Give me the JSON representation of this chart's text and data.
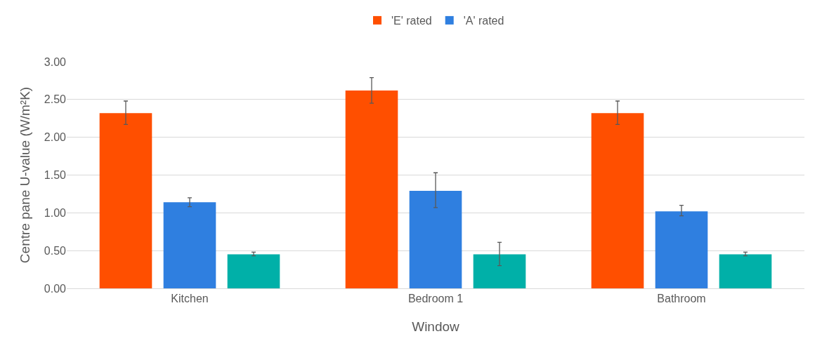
{
  "chart_data": {
    "type": "bar",
    "xlabel": "Window",
    "ylabel": "Centre pane U-value (W/m²K)",
    "categories": [
      "Kitchen",
      "Bedroom 1",
      "Bathroom"
    ],
    "series": [
      {
        "name": "'E' rated",
        "color": "#ff4f00",
        "values": [
          2.32,
          2.62,
          2.32
        ],
        "errors": [
          [
            2.17,
            2.48
          ],
          [
            2.45,
            2.79
          ],
          [
            2.17,
            2.48
          ]
        ]
      },
      {
        "name": "'A' rated",
        "color": "#2f7fe0",
        "values": [
          1.14,
          1.29,
          1.02
        ],
        "errors": [
          [
            1.08,
            1.2
          ],
          [
            1.07,
            1.53
          ],
          [
            0.96,
            1.1
          ]
        ]
      },
      {
        "color": "#00b0a8",
        "values": [
          0.45,
          0.45,
          0.45
        ],
        "errors": [
          [
            0.43,
            0.48
          ],
          [
            0.3,
            0.61
          ],
          [
            0.43,
            0.48
          ]
        ]
      }
    ],
    "ylim": [
      0,
      3
    ],
    "yticks": [
      {
        "value": 0,
        "label": "0.00"
      },
      {
        "value": 0.5,
        "label": "0.50"
      },
      {
        "value": 1,
        "label": "1.00"
      },
      {
        "value": 1.5,
        "label": "1.50"
      },
      {
        "value": 2,
        "label": "2.00"
      },
      {
        "value": 2.5,
        "label": "2.50"
      },
      {
        "value": 3,
        "label": "3.00"
      }
    ],
    "grid": "y",
    "legend": "top"
  }
}
